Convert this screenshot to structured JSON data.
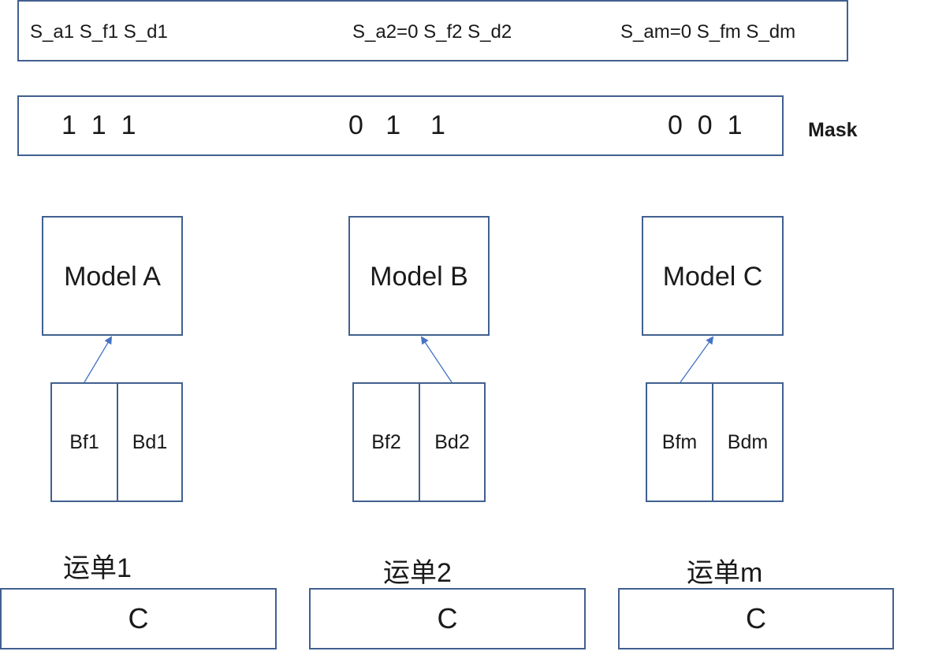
{
  "state_row": {
    "group1": "S_a1  S_f1  S_d1",
    "group2": "S_a2=0  S_f2  S_d2",
    "group3": "S_am=0  S_fm  S_dm"
  },
  "mask_row": {
    "group1": "1  1  1",
    "group2": "0   1    1",
    "group3": "0  0  1",
    "label": "Mask"
  },
  "models": [
    {
      "label": "Model A",
      "features": [
        "Bf1",
        "Bd1"
      ],
      "order_label": "运单1",
      "output": "C"
    },
    {
      "label": "Model B",
      "features": [
        "Bf2",
        "Bd2"
      ],
      "order_label": "运单2",
      "output": "C"
    },
    {
      "label": "Model C",
      "features": [
        "Bfm",
        "Bdm"
      ],
      "order_label": "运单m",
      "output": "C"
    }
  ],
  "colors": {
    "border": "#41608f",
    "arrow": "#4472c4",
    "text": "#1a1a1a"
  }
}
